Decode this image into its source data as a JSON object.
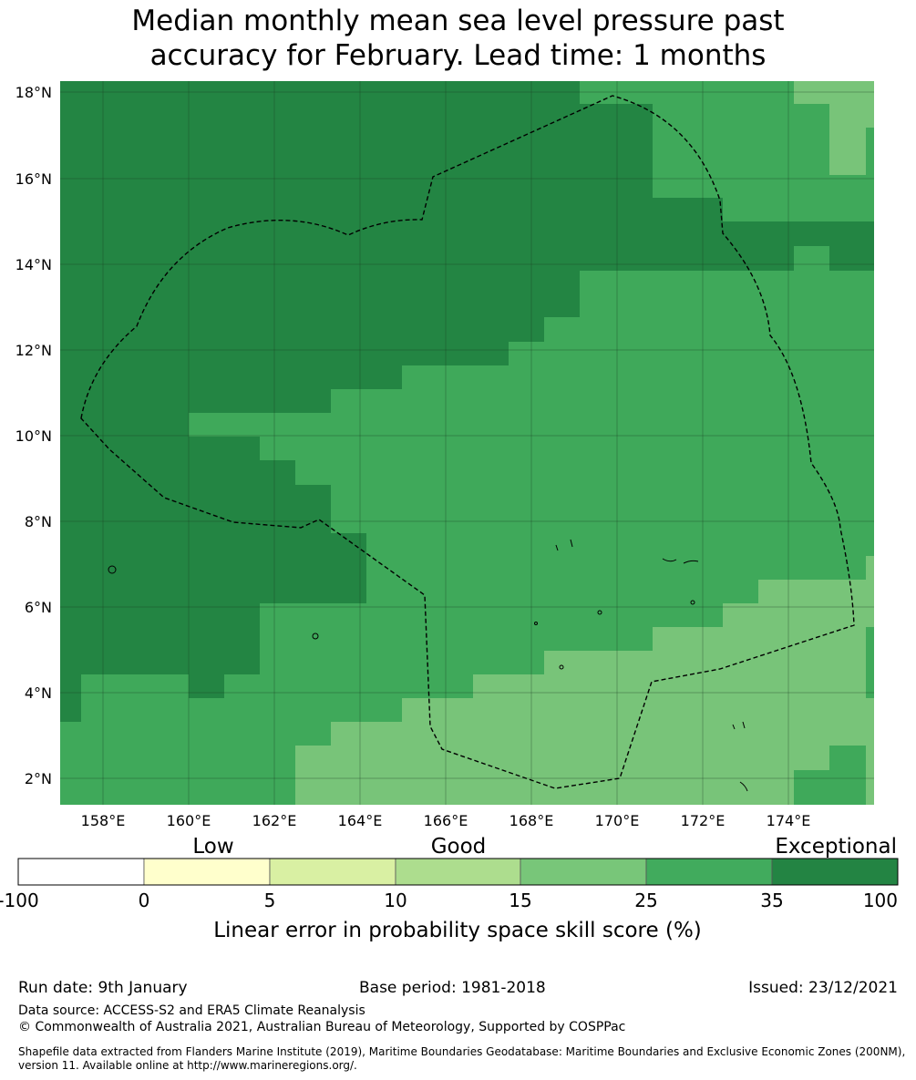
{
  "title_line1": "Median monthly mean sea level pressure past",
  "title_line2": "accuracy for February. Lead time: 1 months",
  "map": {
    "lat_labels": [
      "18°N",
      "16°N",
      "14°N",
      "12°N",
      "10°N",
      "8°N",
      "6°N",
      "4°N",
      "2°N"
    ],
    "lon_labels": [
      "158°E",
      "160°E",
      "162°E",
      "164°E",
      "166°E",
      "168°E",
      "170°E",
      "172°E",
      "174°E"
    ],
    "lat_range": [
      1.4,
      18.3
    ],
    "lon_range": [
      157.0,
      176.0
    ],
    "category_colors": {
      "exceptional": "#238543",
      "good_high": "#3fa95a",
      "good_mid": "#78c479"
    }
  },
  "colorbar": {
    "tiers": [
      "Low",
      "Good",
      "Exceptional"
    ],
    "ticks": [
      "-100",
      "0",
      "5",
      "10",
      "15",
      "25",
      "35",
      "100"
    ],
    "colors": [
      "#ffffff",
      "#ffffcc",
      "#d9f0a3",
      "#addd8e",
      "#78c679",
      "#41ab5d",
      "#238443"
    ],
    "label": "Linear error in probability space skill score (%)"
  },
  "footer": {
    "run_date": "Run date: 9th January",
    "base_period": "Base period: 1981-2018",
    "issued": "Issued: 23/12/2021",
    "data_source": "Data source: ACCESS-S2 and ERA5 Climate Reanalysis",
    "copyright": "© Commonwealth of Australia 2021, Australian Bureau of Meteorology, Supported by COSPPac",
    "shapefile_line1": "Shapefile data extracted from Flanders Marine Institute (2019), Maritime Boundaries Geodatabase: Maritime Boundaries and Exclusive Economic Zones (200NM),",
    "shapefile_line2": "version 11. Available online at http://www.marineregions.org/."
  }
}
